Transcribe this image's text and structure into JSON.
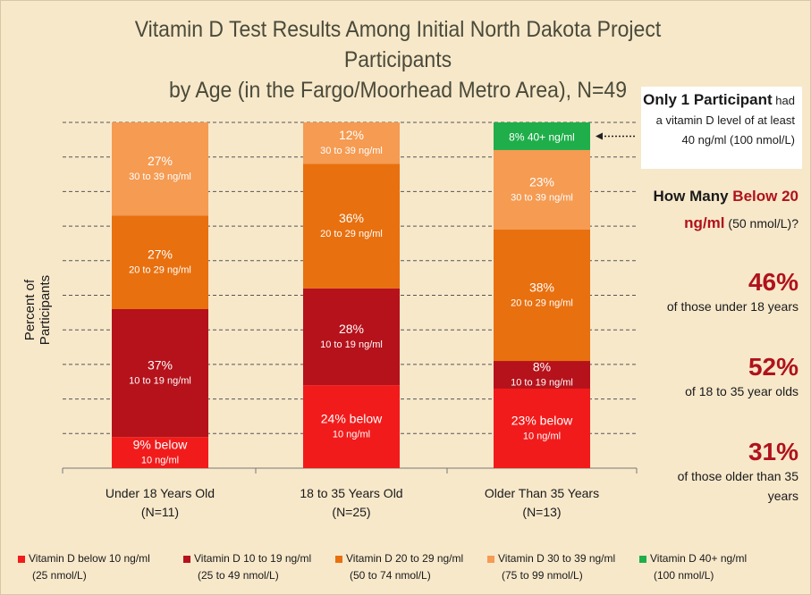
{
  "chart_data": {
    "type": "bar",
    "stacked": true,
    "title": "Vitamin D Test Results Among Initial North Dakota Project Participants by Age (in the Fargo/Moorhead Metro Area), N=49",
    "ylabel": "Percent of Participants",
    "ylim": [
      0,
      100
    ],
    "grid": true,
    "categories": [
      {
        "name": "Under 18 Years Old",
        "n": "(N=11)"
      },
      {
        "name": "18 to 35 Years Old",
        "n": "(N=25)"
      },
      {
        "name": "Older Than 35 Years",
        "n": "(N=13)"
      }
    ],
    "series": [
      {
        "name": "Vitamin D below 10 ng/ml",
        "unit": "(25 nmol/L)",
        "color": "#f21b1b",
        "values": [
          9,
          24,
          23
        ]
      },
      {
        "name": "Vitamin D 10 to 19 ng/ml",
        "unit": "(25 to 49 nmol/L)",
        "color": "#b5121b",
        "values": [
          37,
          28,
          8
        ]
      },
      {
        "name": "Vitamin D 20 to 29 ng/ml",
        "unit": "(50 to 74 nmol/L)",
        "color": "#e8700f",
        "values": [
          27,
          36,
          38
        ]
      },
      {
        "name": "Vitamin D 30 to 39 ng/ml",
        "unit": "(75 to 99 nmol/L)",
        "color": "#f59b52",
        "values": [
          27,
          12,
          23
        ]
      },
      {
        "name": "Vitamin D 40+ ng/ml",
        "unit": "(100 nmol/L)",
        "color": "#1fae4a",
        "values": [
          0,
          0,
          8
        ]
      }
    ],
    "segment_labels": [
      [
        {
          "pct": "9% below",
          "range": "10 ng/ml"
        },
        {
          "pct": "37%",
          "range": "10 to 19 ng/ml"
        },
        {
          "pct": "27%",
          "range": "20 to 29 ng/ml"
        },
        {
          "pct": "27%",
          "range": "30 to 39 ng/ml"
        },
        null
      ],
      [
        {
          "pct": "24% below",
          "range": "10 ng/ml"
        },
        {
          "pct": "28%",
          "range": "10 to 19 ng/ml"
        },
        {
          "pct": "36%",
          "range": "20 to 29 ng/ml"
        },
        {
          "pct": "12%",
          "range": "30 to 39 ng/ml"
        },
        null
      ],
      [
        {
          "pct": "23% below",
          "range": "10 ng/ml"
        },
        {
          "pct": "8%",
          "range": "10 to 19 ng/ml"
        },
        {
          "pct": "38%",
          "range": "20 to 29 ng/ml"
        },
        {
          "pct": "23%",
          "range": "30 to 39 ng/ml"
        },
        {
          "pct": "8% 40+ ng/ml",
          "range": ""
        }
      ]
    ]
  },
  "header": {
    "title_line1": "Vitamin D Test Results Among Initial North Dakota Project Participants",
    "title_line2": "by Age (in the Fargo/Moorhead Metro Area), N=49"
  },
  "callout": {
    "strong": "Only 1 Participant",
    "line1_rest": " had",
    "line2": "a vitamin D level of at least",
    "line3": "40 ng/ml (100 nmol/L)"
  },
  "sidebar": {
    "q_part1": "How Many ",
    "q_red": "Below 20",
    "q_line2_red": "ng/ml",
    "q_line2_rest": " (50 nmol/L)?",
    "stats": [
      {
        "pct": "46%",
        "desc": "of those under 18 years"
      },
      {
        "pct": "52%",
        "desc": "of 18 to 35 year olds"
      },
      {
        "pct": "31%",
        "desc": "of those older than 35 years"
      }
    ]
  }
}
